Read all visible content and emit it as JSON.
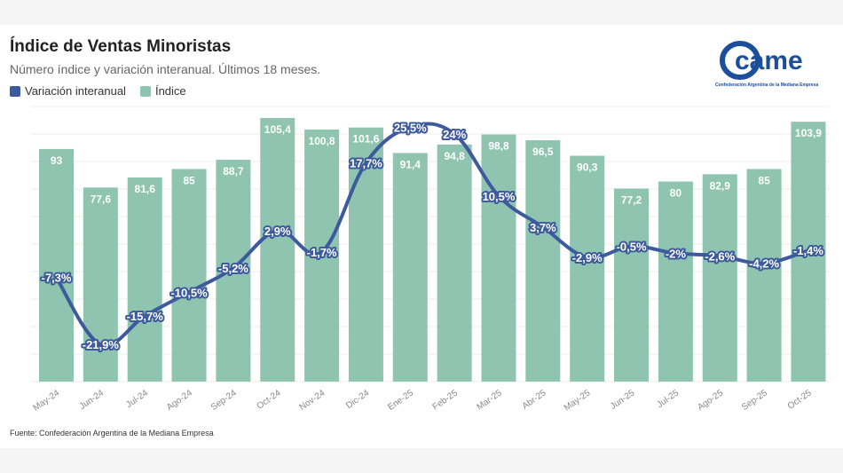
{
  "title": "Índice de Ventas Minoristas",
  "subtitle": "Número índice y variación interanual. Últimos 18 meses.",
  "legend": {
    "line_label": "Variación interanual",
    "bar_label": "Índice"
  },
  "source": "Fuente: Confederación Argentina de la Mediana Empresa",
  "logo": {
    "text": "came",
    "subtitle": "Confederación Argentina de la Mediana Empresa"
  },
  "colors": {
    "bar": "#8fc4b1",
    "line": "#3d5a9c",
    "text_white": "#ffffff"
  },
  "chart_data": {
    "type": "bar+line",
    "categories": [
      "May-24",
      "Jun-24",
      "Jul-24",
      "Ago-24",
      "Sep-24",
      "Oct-24",
      "Nov-24",
      "Dic-24",
      "Ene-25",
      "Feb-25",
      "Mar-25",
      "Abr-25",
      "May-25",
      "Jun-25",
      "Jul-25",
      "Ago-25",
      "Sep-25",
      "Oct-25"
    ],
    "series": [
      {
        "name": "Índice",
        "kind": "bar",
        "values": [
          93,
          77.6,
          81.6,
          85,
          88.7,
          105.4,
          100.8,
          101.6,
          91.4,
          94.8,
          98.8,
          96.5,
          90.3,
          77.2,
          80,
          82.9,
          85,
          103.9
        ],
        "labels": [
          "93",
          "77,6",
          "81,6",
          "85",
          "88,7",
          "105,4",
          "100,8",
          "101,6",
          "91,4",
          "94,8",
          "98,8",
          "96,5",
          "90,3",
          "77,2",
          "80",
          "82,9",
          "85",
          "103,9"
        ]
      },
      {
        "name": "Variación interanual",
        "kind": "line",
        "values": [
          -7.3,
          -21.9,
          -15.7,
          -10.5,
          -5.2,
          2.9,
          -1.7,
          17.7,
          25.5,
          24,
          10.5,
          3.7,
          -2.9,
          -0.5,
          -2,
          -2.6,
          -4.2,
          -1.4
        ],
        "labels": [
          "-7,3%",
          "-21,9%",
          "-15,7%",
          "-10,5%",
          "-5,2%",
          "2,9%",
          "-1,7%",
          "17,7%",
          "25,5%",
          "24%",
          "10,5%",
          "3,7%",
          "-2,9%",
          "-0,5%",
          "-2%",
          "-2,6%",
          "-4,2%",
          "-1,4%"
        ]
      }
    ],
    "bar_ylim": [
      0,
      110
    ],
    "line_ylim": [
      -30,
      30
    ]
  }
}
